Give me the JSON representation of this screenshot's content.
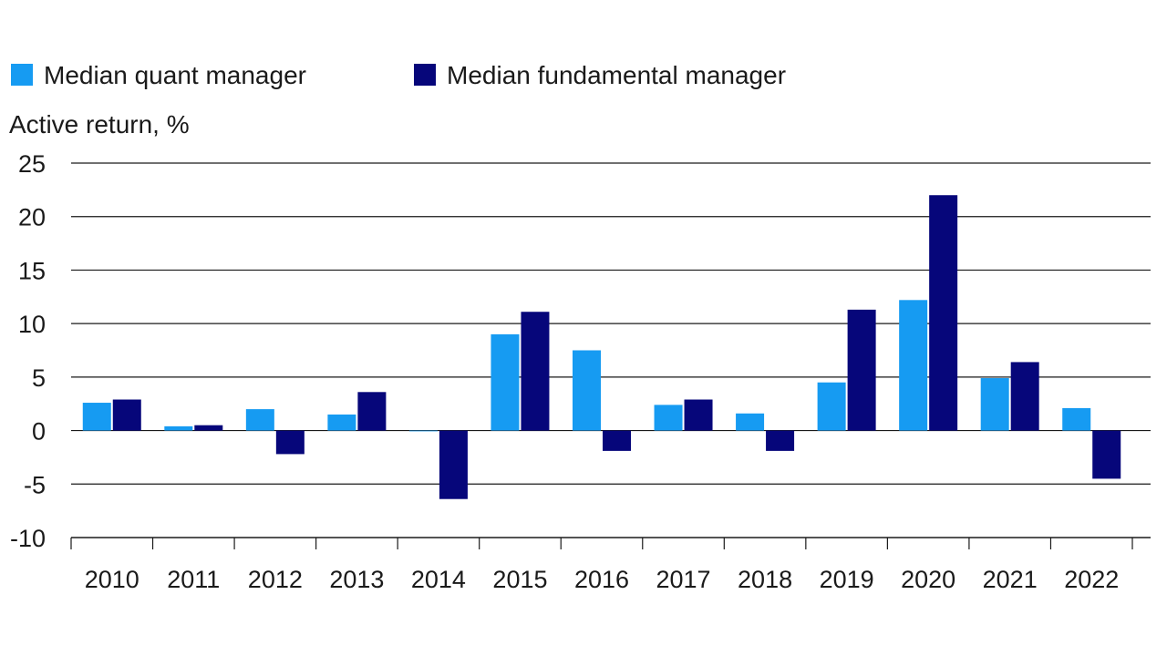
{
  "chart_data": {
    "type": "bar",
    "title": "",
    "xlabel": "",
    "ylabel": "Active return, %",
    "ylim": [
      -10,
      25
    ],
    "yticks": [
      25,
      20,
      15,
      10,
      5,
      0,
      -5,
      -10
    ],
    "ytick_labels": [
      "25",
      "20",
      "15",
      "10",
      "5",
      "0",
      "-5",
      "-10"
    ],
    "grid": true,
    "legend_position": "top-left",
    "categories": [
      "2010",
      "2011",
      "2012",
      "2013",
      "2014",
      "2015",
      "2016",
      "2017",
      "2018",
      "2019",
      "2020",
      "2021",
      "2022"
    ],
    "series": [
      {
        "name": "Median quant manager",
        "color": "#169BF2",
        "values": [
          2.6,
          0.4,
          2.0,
          1.5,
          0.0,
          9.0,
          7.5,
          2.4,
          1.6,
          4.5,
          12.2,
          4.9,
          2.1
        ]
      },
      {
        "name": "Median fundamental manager",
        "color": "#06067A",
        "values": [
          2.9,
          0.5,
          -2.2,
          3.6,
          -6.4,
          11.1,
          -1.9,
          2.9,
          -1.9,
          11.3,
          22.0,
          6.4,
          -4.5
        ]
      }
    ]
  }
}
